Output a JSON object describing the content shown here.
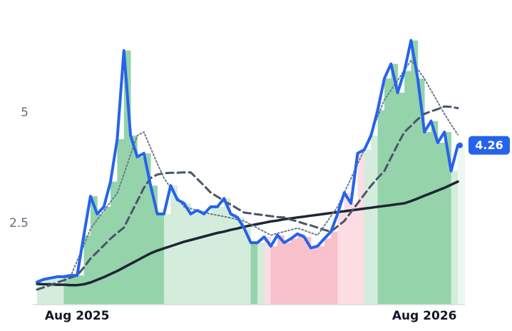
{
  "chart_data": {
    "type": "line",
    "categories": [
      null,
      null,
      null,
      null,
      null,
      null,
      "Aug 2025",
      null,
      null,
      null,
      null,
      null,
      null,
      null,
      null,
      null,
      null,
      null,
      null,
      null,
      null,
      null,
      null,
      null,
      null,
      null,
      null,
      null,
      null,
      null,
      null,
      null,
      null,
      null,
      null,
      null,
      null,
      null,
      null,
      null,
      null,
      null,
      null,
      null,
      null,
      null,
      null,
      null,
      null,
      null,
      null,
      null,
      null,
      null,
      null,
      null,
      null,
      null,
      "Aug 2026",
      null,
      null,
      null,
      null,
      null
    ],
    "ylim": [
      0.66,
      6.9
    ],
    "yticks": [
      2.5,
      5.0
    ],
    "bar_colors": [
      "#d3ecdc",
      "#d3ecdc",
      "#d3ecdc",
      "#d3ecdc",
      "#95d3ab",
      "#95d3ab",
      "#95d3ab",
      "#95d3ab",
      "#95d3ab",
      "#95d3ab",
      "#95d3ab",
      "#95d3ab",
      "#95d3ab",
      "#95d3ab",
      "#95d3ab",
      "#95d3ab",
      "#95d3ab",
      "#95d3ab",
      "#95d3ab",
      "#d3ecdc",
      "#d3ecdc",
      "#d3ecdc",
      "#d3ecdc",
      "#d3ecdc",
      "#d3ecdc",
      "#d3ecdc",
      "#d3ecdc",
      "#d3ecdc",
      "#d3ecdc",
      "#d3ecdc",
      "#d3ecdc",
      "#d3ecdc",
      "#95d3ab",
      "#d3ecdc",
      "#fbdde3",
      "#f8c0cb",
      "#f8c0cb",
      "#f8c0cb",
      "#f8c0cb",
      "#f8c0cb",
      "#f8c0cb",
      "#f8c0cb",
      "#f8c0cb",
      "#f8c0cb",
      "#f8c0cb",
      "#fbdde3",
      "#fbdde3",
      "#fbdde3",
      "#fbdde3",
      "#d3ecdc",
      "#d3ecdc",
      "#95d3ab",
      "#95d3ab",
      "#95d3ab",
      "#95d3ab",
      "#95d3ab",
      "#95d3ab",
      "#95d3ab",
      "#95d3ab",
      "#95d3ab",
      "#95d3ab",
      "#95d3ab",
      "#d3ecdc",
      "#eef7f1"
    ],
    "series": [
      {
        "color": "#2563eb",
        "style": "solid",
        "width": 4,
        "values": [
          1.17,
          1.23,
          1.26,
          1.29,
          1.29,
          1.32,
          1.32,
          2.23,
          3.11,
          2.71,
          2.87,
          3.44,
          4.4,
          6.4,
          4.48,
          4.0,
          4.08,
          3.35,
          2.71,
          2.71,
          3.35,
          3.03,
          2.95,
          2.71,
          2.79,
          2.71,
          2.87,
          2.87,
          3.06,
          2.71,
          2.63,
          2.39,
          2.06,
          2.06,
          2.19,
          1.98,
          2.23,
          2.06,
          2.15,
          2.26,
          2.19,
          1.94,
          1.98,
          2.15,
          2.31,
          2.71,
          3.19,
          2.95,
          4.08,
          4.16,
          4.48,
          5.05,
          5.77,
          6.1,
          5.45,
          5.94,
          6.63,
          5.77,
          4.56,
          4.81,
          4.32,
          4.56,
          3.68,
          4.26
        ]
      },
      {
        "color": "#6b7a90",
        "style": "dotted",
        "width": 2,
        "values": [
          null,
          null,
          null,
          null,
          null,
          1.29,
          1.65,
          2.0,
          2.37,
          2.58,
          2.78,
          2.98,
          3.18,
          3.6,
          4.05,
          4.48,
          4.56,
          4.2,
          3.85,
          3.52,
          3.3,
          3.08,
          2.87,
          2.83,
          2.79,
          2.75,
          2.71,
          2.68,
          2.65,
          2.62,
          2.58,
          2.55,
          2.47,
          2.39,
          2.31,
          2.23,
          2.27,
          2.31,
          2.35,
          2.39,
          2.34,
          2.28,
          2.23,
          2.44,
          2.66,
          2.87,
          3.19,
          3.51,
          3.84,
          4.16,
          4.54,
          4.91,
          5.29,
          5.51,
          5.73,
          5.96,
          6.18,
          5.98,
          5.77,
          5.5,
          5.24,
          4.97,
          4.73,
          4.5
        ]
      },
      {
        "color": "#4a5568",
        "style": "dashed",
        "width": 3,
        "values": [
          1.0,
          1.05,
          1.1,
          1.16,
          1.21,
          1.27,
          1.32,
          1.5,
          1.7,
          1.85,
          2.0,
          2.15,
          2.28,
          2.4,
          2.7,
          3.0,
          3.3,
          3.52,
          3.6,
          3.63,
          3.64,
          3.64,
          3.65,
          3.65,
          3.5,
          3.35,
          3.19,
          3.1,
          3.0,
          2.92,
          2.83,
          2.74,
          2.72,
          2.7,
          2.68,
          2.66,
          2.64,
          2.63,
          2.58,
          2.54,
          2.49,
          2.45,
          2.4,
          2.35,
          2.31,
          2.43,
          2.55,
          2.75,
          2.95,
          3.15,
          3.35,
          3.52,
          3.68,
          3.98,
          4.28,
          4.56,
          4.7,
          4.85,
          4.97,
          5.03,
          5.08,
          5.14,
          5.13,
          5.1
        ]
      },
      {
        "color": "#1e2535",
        "style": "solid",
        "width": 3.5,
        "values": [
          1.13,
          1.12,
          1.12,
          1.11,
          1.11,
          1.1,
          1.1,
          1.12,
          1.16,
          1.22,
          1.28,
          1.35,
          1.42,
          1.5,
          1.58,
          1.66,
          1.74,
          1.82,
          1.88,
          1.93,
          1.98,
          2.03,
          2.08,
          2.12,
          2.16,
          2.2,
          2.24,
          2.28,
          2.31,
          2.35,
          2.38,
          2.42,
          2.45,
          2.48,
          2.51,
          2.54,
          2.56,
          2.59,
          2.61,
          2.63,
          2.65,
          2.67,
          2.69,
          2.71,
          2.73,
          2.75,
          2.77,
          2.79,
          2.81,
          2.83,
          2.85,
          2.87,
          2.89,
          2.91,
          2.93,
          2.95,
          3.0,
          3.06,
          3.12,
          3.18,
          3.24,
          3.3,
          3.37,
          3.44
        ]
      }
    ]
  }
}
